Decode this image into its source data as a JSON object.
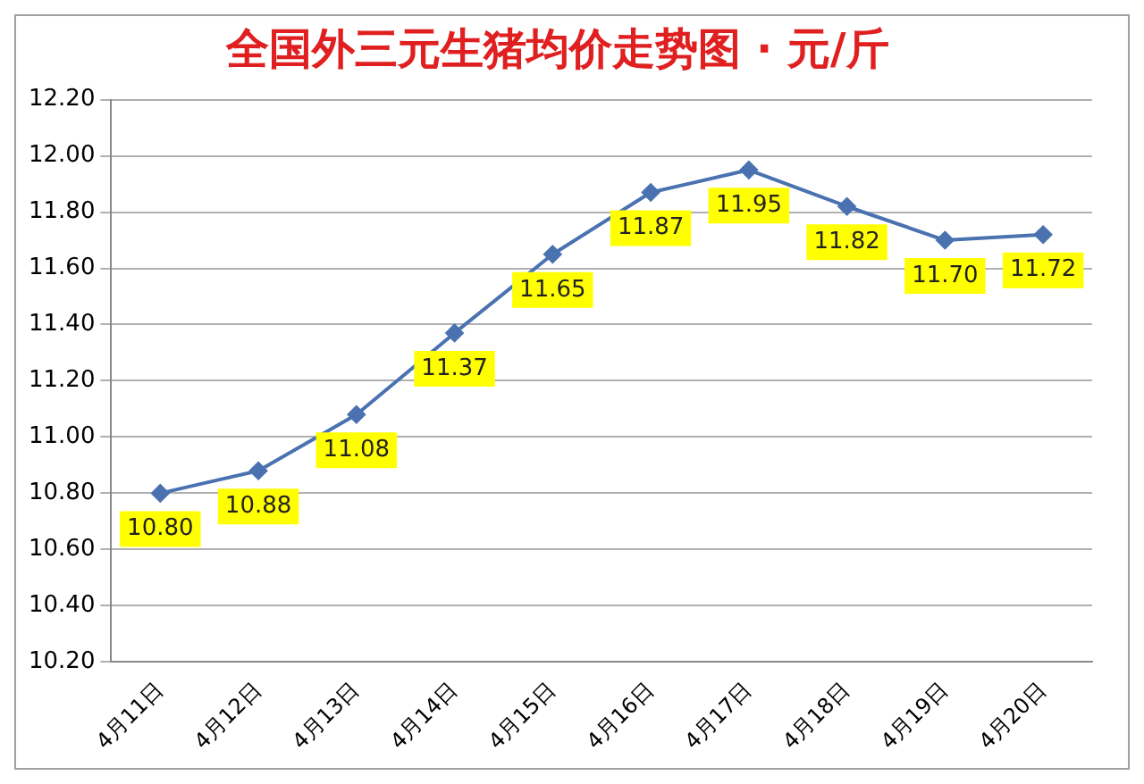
{
  "chart_data": {
    "type": "line",
    "title": "全国外三元生猪均价走势图 · 元/斤",
    "categories": [
      "4月11日",
      "4月12日",
      "4月13日",
      "4月14日",
      "4月15日",
      "4月16日",
      "4月17日",
      "4月18日",
      "4月19日",
      "4月20日"
    ],
    "series": [
      {
        "color": "#4a72b0",
        "values": [
          10.8,
          10.88,
          11.08,
          11.37,
          11.65,
          11.87,
          11.95,
          11.82,
          11.7,
          11.72
        ],
        "value_labels": [
          "10.80",
          "10.88",
          "11.08",
          "11.37",
          "11.65",
          "11.87",
          "11.95",
          "11.82",
          "11.70",
          "11.72"
        ]
      }
    ],
    "ylim": [
      10.2,
      12.2
    ],
    "yticks": [
      {
        "value": 10.2,
        "label": "10.20"
      },
      {
        "value": 10.4,
        "label": "10.40"
      },
      {
        "value": 10.6,
        "label": "10.60"
      },
      {
        "value": 10.8,
        "label": "10.80"
      },
      {
        "value": 11.0,
        "label": "11.00"
      },
      {
        "value": 11.2,
        "label": "11.20"
      },
      {
        "value": 11.4,
        "label": "11.40"
      },
      {
        "value": 11.6,
        "label": "11.60"
      },
      {
        "value": 11.8,
        "label": "11.80"
      },
      {
        "value": 12.0,
        "label": "12.00"
      },
      {
        "value": 12.2,
        "label": "12.20"
      }
    ],
    "grid": "y",
    "legend": false,
    "marker": "diamond",
    "line_style": "solid"
  }
}
